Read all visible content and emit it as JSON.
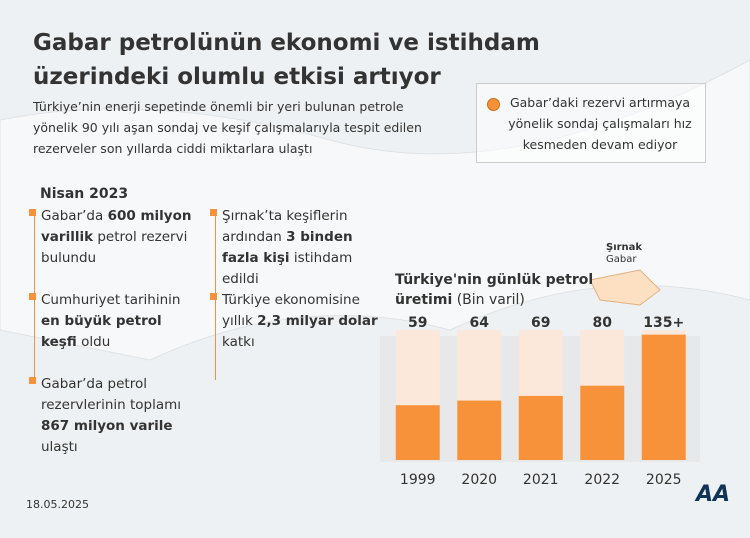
{
  "header": {
    "title": "Gabar petrolünün ekonomi ve istihdam üzerindeki olumlu etkisi artıyor",
    "subtitle": "Türkiye’nin enerji sepetinde önemli bir yeri bulunan petrole yönelik 90 yılı aşan sondaj ve keşif çalışmalarıyla tespit edilen rezerveler son yıllarda ciddi miktarlara ulaştı"
  },
  "note": "Gabar’daki rezervi artırmaya yönelik sondaj çalışmaları hız kesmeden devam ediyor",
  "date_heading": "Nisan 2023",
  "bullets": [
    [
      {
        "text": "Gabar’da "
      },
      {
        "text": "600 milyon varillik",
        "bold": true
      },
      {
        "text": " petrol rezervi bulundu"
      }
    ],
    [
      {
        "text": "Cumhuriyet tarihinin "
      },
      {
        "text": "en büyük petrol keşfi",
        "bold": true
      },
      {
        "text": " oldu"
      }
    ],
    [
      {
        "text": "Gabar’da petrol rezervlerinin toplamı "
      },
      {
        "text": "867 milyon varile",
        "bold": true
      },
      {
        "text": " ulaştı"
      }
    ],
    [
      {
        "text": "Şırnak’ta keşiflerin ardından "
      },
      {
        "text": "3 binden fazla kişi",
        "bold": true
      },
      {
        "text": " istihdam edildi"
      }
    ],
    [
      {
        "text": "Türkiye ekonomisine yıllık "
      },
      {
        "text": "2,3 milyar dolar",
        "bold": true
      },
      {
        "text": " katkı"
      }
    ]
  ],
  "map_labels": {
    "city": "Şırnak",
    "site": "Gabar"
  },
  "footer": {
    "date": "18.05.2025",
    "logo": "AA"
  },
  "chart_data": {
    "type": "bar",
    "title": "Türkiye'nin günlük petrol üretimi",
    "unit": "(Bin varil)",
    "categories": [
      "1999",
      "2020",
      "2021",
      "2022",
      "2025"
    ],
    "values": [
      59,
      64,
      69,
      80,
      135
    ],
    "value_labels": [
      "59",
      "64",
      "69",
      "80",
      "135+"
    ],
    "color": "#f7923a",
    "ylim": [
      0,
      140
    ]
  }
}
